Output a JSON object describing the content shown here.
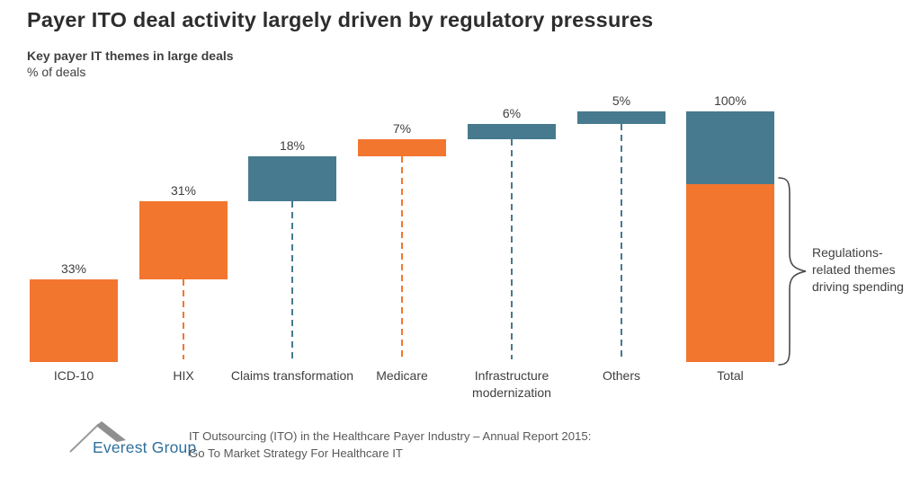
{
  "title": "Payer ITO deal activity largely driven by regulatory pressures",
  "subtitle": "Key payer IT themes in large deals",
  "unit_label": "% of deals",
  "colors": {
    "regulatory_orange": "#F3762F",
    "other_teal": "#477A8E",
    "text_dark": "#3F3F3F",
    "brace_gray": "#4A4A4A",
    "logo_blue": "#2E6F9C",
    "logo_gray": "#8F8F8F",
    "source_gray": "#595959"
  },
  "chart_data": {
    "type": "bar",
    "subtype": "waterfall",
    "title": "Key payer IT themes in large deals",
    "ylabel": "% of deals",
    "ylim": [
      0,
      100
    ],
    "grid": false,
    "categories": [
      "ICD-10",
      "HIX",
      "Claims transformation",
      "Medicare",
      "Infrastructure modernization",
      "Others",
      "Total"
    ],
    "bars": [
      {
        "label": "ICD-10",
        "value": 33,
        "start": 0,
        "theme": "regulatory",
        "value_label": "33%"
      },
      {
        "label": "HIX",
        "value": 31,
        "start": 33,
        "theme": "regulatory",
        "value_label": "31%"
      },
      {
        "label": "Claims transformation",
        "value": 18,
        "start": 64,
        "theme": "other",
        "value_label": "18%"
      },
      {
        "label": "Medicare",
        "value": 7,
        "start": 82,
        "theme": "regulatory",
        "value_label": "7%"
      },
      {
        "label": "Infrastructure modernization",
        "value": 6,
        "start": 89,
        "theme": "other",
        "value_label": "6%"
      },
      {
        "label": "Others",
        "value": 5,
        "start": 95,
        "theme": "other",
        "value_label": "5%"
      },
      {
        "label": "Total",
        "value": 100,
        "start": 0,
        "theme": "total",
        "value_label": "100%",
        "segments": [
          {
            "value": 71,
            "theme": "regulatory"
          },
          {
            "value": 29,
            "theme": "other"
          }
        ]
      }
    ],
    "legend_note": "orange = regulations-related themes, teal = other themes",
    "annotation": "Regulations-related themes driving spending"
  },
  "annotation_text": "Regulations-related themes driving spending",
  "footer": {
    "brand": "Everest Group",
    "source_line1": "IT Outsourcing (ITO) in the Healthcare Payer Industry – Annual Report 2015:",
    "source_line2": "Go To Market Strategy For Healthcare IT"
  }
}
